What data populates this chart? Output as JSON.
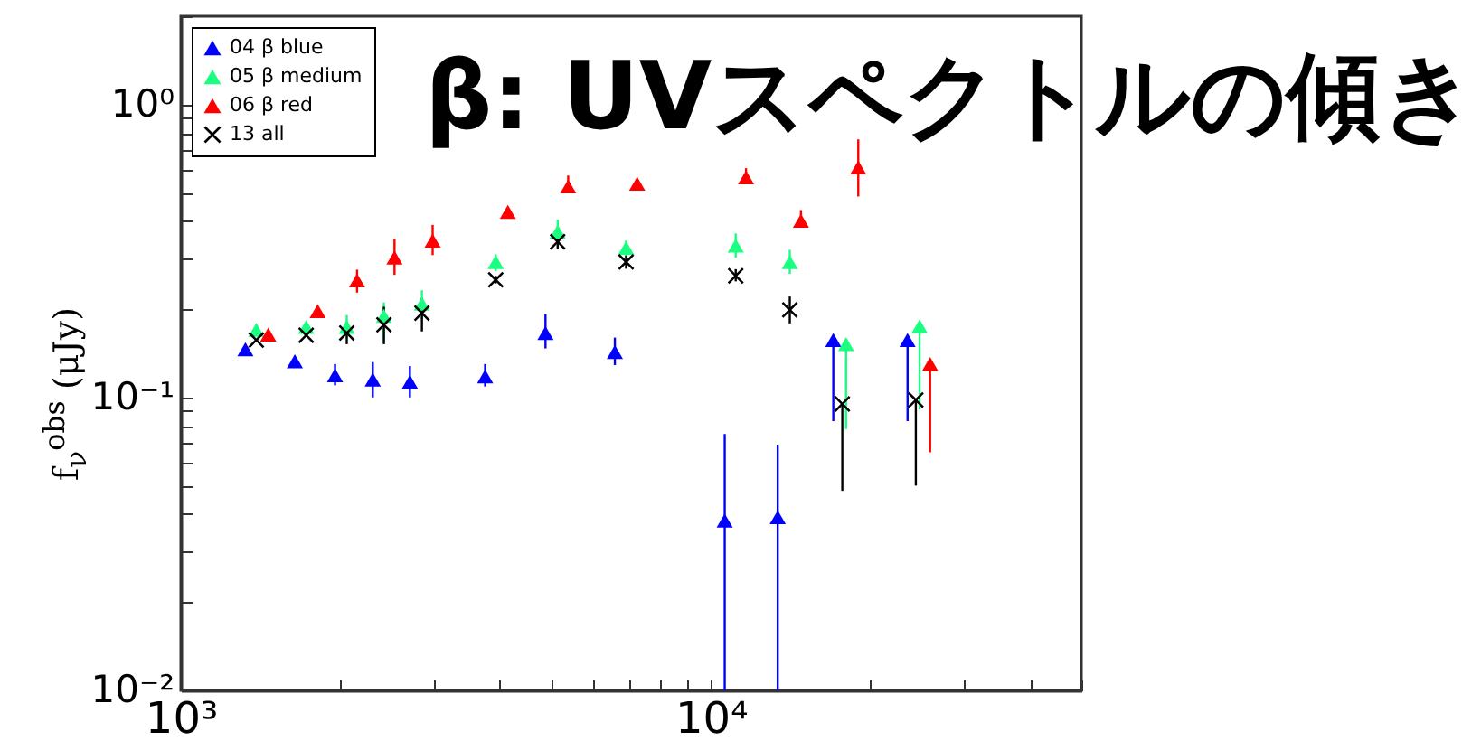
{
  "chart_data": {
    "type": "scatter",
    "title": "β: UVスペクトルの傾き",
    "ylabel": "f$_{ν}$$^{obs}$ (μJy)",
    "log": "xy",
    "grid": false,
    "legend": "top left",
    "marker": "triangle",
    "xlim": [
      1000,
      50000
    ],
    "xticks": [
      {
        "value": 1000,
        "label": "10³"
      },
      {
        "value": 2000,
        "label": null
      },
      {
        "value": 3000,
        "label": null
      },
      {
        "value": 4000,
        "label": null
      },
      {
        "value": 5000,
        "label": null
      },
      {
        "value": 6000,
        "label": null
      },
      {
        "value": 7000,
        "label": null
      },
      {
        "value": 8000,
        "label": null
      },
      {
        "value": 9000,
        "label": null
      },
      {
        "value": 10000,
        "label": "10⁴"
      },
      {
        "value": 20000,
        "label": null
      },
      {
        "value": 30000,
        "label": null
      },
      {
        "value": 40000,
        "label": null
      },
      {
        "value": 50000,
        "label": null
      }
    ],
    "ylim": [
      0.01,
      2
    ],
    "yticks": [
      {
        "value": 0.01,
        "label": "10⁻²"
      },
      {
        "value": 0.02,
        "label": null
      },
      {
        "value": 0.03,
        "label": null
      },
      {
        "value": 0.04,
        "label": null
      },
      {
        "value": 0.05,
        "label": null
      },
      {
        "value": 0.06,
        "label": null
      },
      {
        "value": 0.07,
        "label": null
      },
      {
        "value": 0.08,
        "label": null
      },
      {
        "value": 0.09,
        "label": null
      },
      {
        "value": 0.1,
        "label": "10⁻¹"
      },
      {
        "value": 0.2,
        "label": null
      },
      {
        "value": 0.3,
        "label": null
      },
      {
        "value": 0.4,
        "label": null
      },
      {
        "value": 0.5,
        "label": null
      },
      {
        "value": 0.6,
        "label": null
      },
      {
        "value": 0.7,
        "label": null
      },
      {
        "value": 0.8,
        "label": null
      },
      {
        "value": 0.9,
        "label": null
      },
      {
        "value": 1,
        "label": "10⁰"
      },
      {
        "value": 2,
        "label": null
      }
    ],
    "series": [
      {
        "name": "04 β blue",
        "color": "#0000ff",
        "x": [
          1324,
          1641,
          1954,
          2302,
          2705,
          3751,
          4875,
          6590,
          10620,
          13370,
          17020,
          23500
        ],
        "values": [
          0.146,
          0.133,
          0.119,
          0.115,
          0.113,
          0.118,
          0.166,
          0.143,
          0.038,
          0.039,
          0.157,
          0.157
        ],
        "errors": [
          null,
          null,
          [
            0.11,
            0.13
          ],
          [
            0.1,
            0.132
          ],
          [
            0.1,
            0.128
          ],
          [
            0.109,
            0.13
          ],
          [
            0.147,
            0.192
          ],
          [
            0.129,
            0.16
          ],
          [
            0.01,
            0.075
          ],
          [
            0.01,
            0.069
          ],
          [
            0.083,
            0.157
          ],
          [
            0.083,
            0.157
          ]
        ]
      },
      {
        "name": "05 β medium",
        "color": "#1aff80",
        "x": [
          1388,
          1724,
          2056,
          2416,
          2850,
          3927,
          5140,
          6920,
          11140,
          14090,
          17990,
          24760
        ],
        "values": [
          0.17,
          0.174,
          0.174,
          0.19,
          0.209,
          0.29,
          0.368,
          0.324,
          0.33,
          0.29,
          0.152,
          0.175
        ],
        "errors": [
          null,
          null,
          [
            0.16,
            0.191
          ],
          [
            0.153,
            0.211
          ],
          [
            0.185,
            0.232
          ],
          [
            0.27,
            0.308
          ],
          [
            0.335,
            0.404
          ],
          [
            0.3,
            0.343
          ],
          [
            0.3,
            0.363
          ],
          [
            0.264,
            0.319
          ],
          [
            0.078,
            0.152
          ],
          [
            0.091,
            0.175
          ]
        ]
      },
      {
        "name": "06 β red",
        "color": "#ff0000",
        "x": [
          1462,
          1812,
          2150,
          2530,
          2986,
          4140,
          5380,
          7260,
          11650,
          14790,
          18970,
          25920
        ],
        "values": [
          0.164,
          0.197,
          0.251,
          0.3,
          0.343,
          0.43,
          0.525,
          0.537,
          0.564,
          0.401,
          0.61,
          0.13
        ],
        "errors": [
          null,
          null,
          [
            0.228,
            0.273
          ],
          [
            0.262,
            0.348
          ],
          [
            0.306,
            0.388
          ],
          null,
          [
            0.5,
            0.572
          ],
          null,
          [
            0.54,
            0.606
          ],
          [
            0.38,
            0.436
          ],
          [
            0.485,
            0.76
          ],
          [
            0.065,
            0.13
          ]
        ]
      },
      {
        "name": "13 all",
        "color": "#000000",
        "marker": "cross",
        "x": [
          1388,
          1724,
          2056,
          2416,
          2850,
          3927,
          5140,
          6920,
          11140,
          14090,
          17700,
          24360
        ],
        "values": [
          0.157,
          0.163,
          0.166,
          0.177,
          0.194,
          0.252,
          0.34,
          0.29,
          0.26,
          0.199,
          0.095,
          0.098
        ],
        "errors": [
          null,
          null,
          [
            0.152,
            0.181
          ],
          [
            0.152,
            0.204
          ],
          [
            0.168,
            0.218
          ],
          [
            0.245,
            0.26
          ],
          [
            0.32,
            0.36
          ],
          [
            0.275,
            0.305
          ],
          [
            0.249,
            0.274
          ],
          [
            0.179,
            0.221
          ],
          [
            0.048,
            0.095
          ],
          [
            0.05,
            0.098
          ]
        ]
      }
    ]
  }
}
